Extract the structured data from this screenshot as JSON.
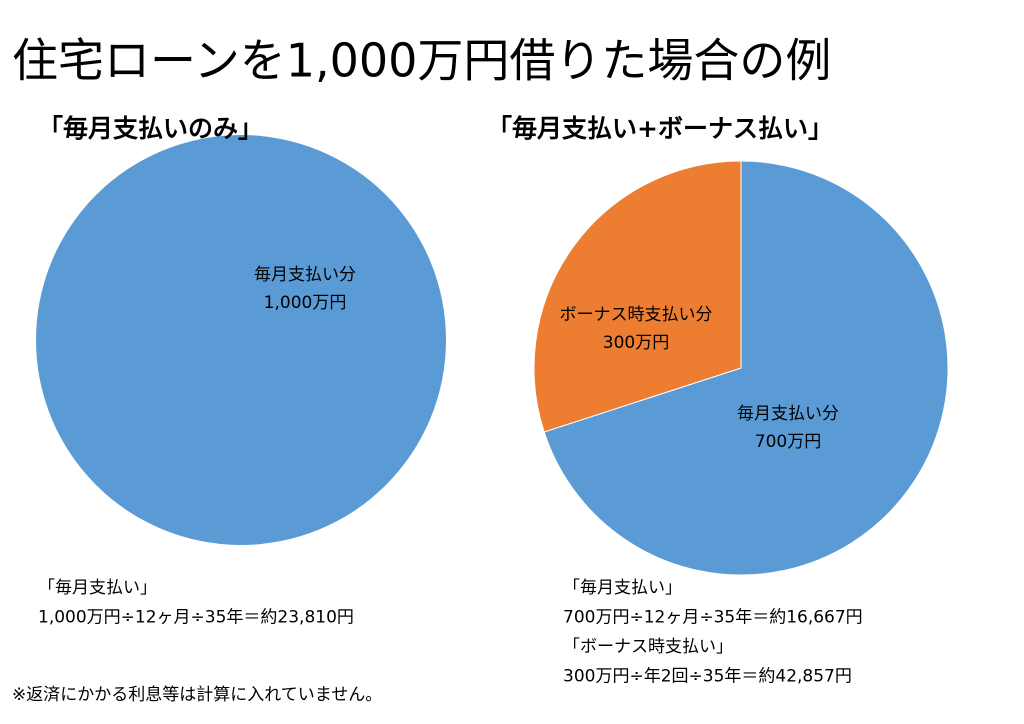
{
  "page": {
    "title": "住宅ローンを1,000万円借りた場合の例",
    "footnote": "※返済にかかる利息等は計算に入れていません。"
  },
  "chart_data": [
    {
      "type": "pie",
      "title": "「毎月支払いのみ」",
      "categories": [
        "毎月支払い分"
      ],
      "values": [
        1000
      ],
      "value_labels": [
        "1,000万円"
      ],
      "colors": [
        "#5b9bd5"
      ],
      "annotations": [
        "「毎月支払い」",
        "1,000万円÷12ヶ月÷35年＝約23,810円"
      ]
    },
    {
      "type": "pie",
      "title": "「毎月支払い+ボーナス払い」",
      "categories": [
        "毎月支払い分",
        "ボーナス時支払い分"
      ],
      "values": [
        700,
        300
      ],
      "value_labels": [
        "700万円",
        "300万円"
      ],
      "colors": [
        "#5b9bd5",
        "#ed7d31"
      ],
      "annotations": [
        "「毎月支払い」",
        "700万円÷12ヶ月÷35年＝約16,667円",
        "「ボーナス時支払い」",
        "300万円÷年2回÷35年＝約42,857円"
      ]
    }
  ]
}
